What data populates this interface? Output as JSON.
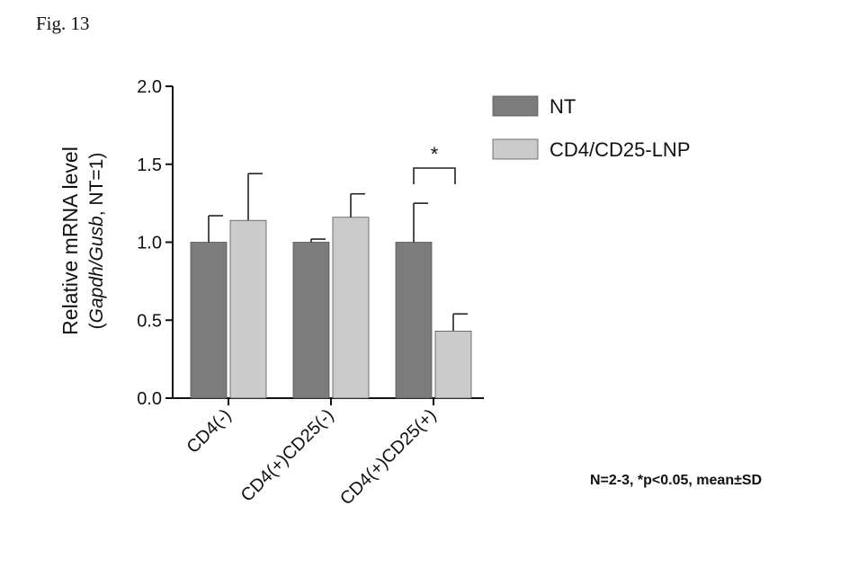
{
  "figure": {
    "label": "Fig. 13",
    "footnote": "N=2-3, *p<0.05, mean±SD"
  },
  "colors": {
    "NT": "#7c7c7c",
    "CD4/CD25-LNP": "#cbcbcb",
    "axis": "#111111"
  },
  "chart_data": {
    "type": "bar",
    "ylabel_line1": "Relative mRNA level",
    "ylabel_line2_parts": [
      "(",
      "Gapdh/Gusb",
      ", NT=1)"
    ],
    "categories": [
      "CD4(-)",
      "CD4(+)CD25(-)",
      "CD4(+)CD25(+)"
    ],
    "series": [
      {
        "name": "NT",
        "values": [
          1.0,
          1.0,
          1.0
        ],
        "errors": [
          0.17,
          0.02,
          0.25
        ]
      },
      {
        "name": "CD4/CD25-LNP",
        "values": [
          1.14,
          1.16,
          0.43
        ],
        "errors": [
          0.3,
          0.15,
          0.11
        ]
      }
    ],
    "ylim": [
      0.0,
      2.0
    ],
    "yticks": [
      "0.0",
      "0.5",
      "1.0",
      "1.5",
      "2.0"
    ],
    "legend_position": "top-right",
    "grid": false,
    "annotations": [
      {
        "text": "*",
        "category": "CD4(+)CD25(+)"
      }
    ]
  }
}
